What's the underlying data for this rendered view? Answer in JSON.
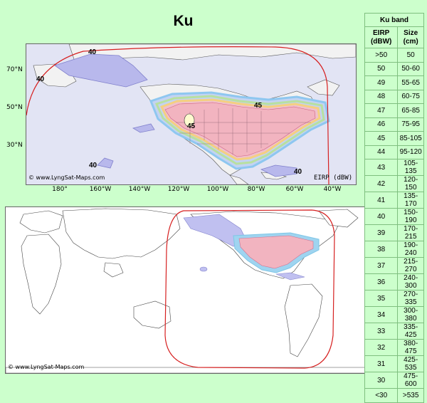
{
  "title": "Ku",
  "top_map": {
    "lat_labels": [
      "70°N",
      "50°N",
      "30°N"
    ],
    "lon_labels": [
      "180°",
      "160°W",
      "140°W",
      "120°W",
      "100°W",
      "80°W",
      "60°W",
      "40°W"
    ],
    "contour_labels": [
      "40",
      "40",
      "45",
      "45",
      "40",
      "40"
    ],
    "copyright": "© www.LyngSat-Maps.com",
    "unit": "EIRP (dBW)"
  },
  "bottom_map": {
    "copyright": "© www.LyngSat-Maps.com"
  },
  "legend": {
    "band": "Ku band",
    "col_eirp": "EIRP (dBW)",
    "col_size": "Size (cm)",
    "rows": [
      {
        "eirp": ">50",
        "size": "50"
      },
      {
        "eirp": "50",
        "size": "50-60"
      },
      {
        "eirp": "49",
        "size": "55-65"
      },
      {
        "eirp": "48",
        "size": "60-75"
      },
      {
        "eirp": "47",
        "size": "65-85"
      },
      {
        "eirp": "46",
        "size": "75-95"
      },
      {
        "eirp": "45",
        "size": "85-105"
      },
      {
        "eirp": "44",
        "size": "95-120"
      },
      {
        "eirp": "43",
        "size": "105-135"
      },
      {
        "eirp": "42",
        "size": "120-150"
      },
      {
        "eirp": "41",
        "size": "135-170"
      },
      {
        "eirp": "40",
        "size": "150-190"
      },
      {
        "eirp": "39",
        "size": "170-215"
      },
      {
        "eirp": "38",
        "size": "190-240"
      },
      {
        "eirp": "37",
        "size": "215-270"
      },
      {
        "eirp": "36",
        "size": "240-300"
      },
      {
        "eirp": "35",
        "size": "270-335"
      },
      {
        "eirp": "34",
        "size": "300-380"
      },
      {
        "eirp": "33",
        "size": "335-425"
      },
      {
        "eirp": "32",
        "size": "380-475"
      },
      {
        "eirp": "31",
        "size": "425-535"
      },
      {
        "eirp": "30",
        "size": "475-600"
      },
      {
        "eirp": "<30",
        "size": ">535"
      }
    ]
  }
}
